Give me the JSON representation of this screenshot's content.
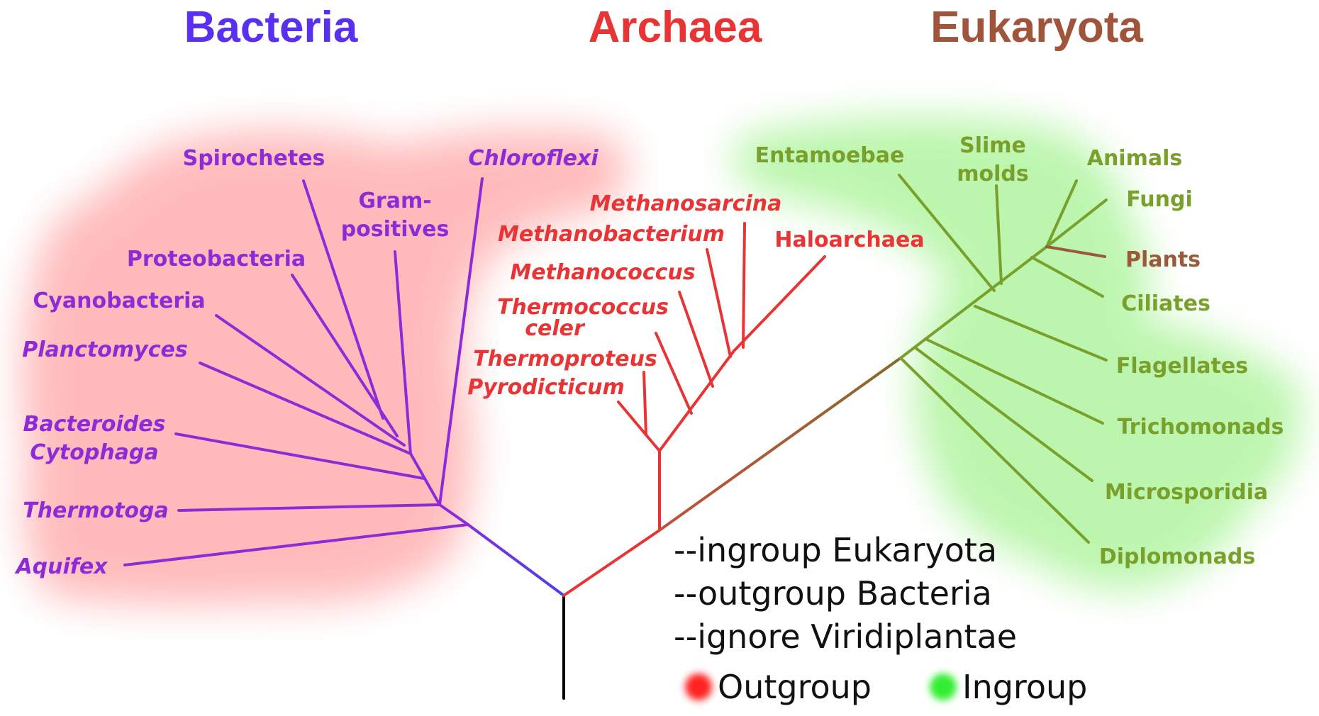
{
  "colors": {
    "bacteria": "#8e2bd6",
    "bacteria_title": "#5a30f0",
    "archaea": "#e83434",
    "eukaryota": "#7aa02c",
    "eukaryota_title": "#a0543c",
    "plants": "#9a5a3a",
    "root": "#000000",
    "outgroup": "#ff2020",
    "ingroup": "#33ee33"
  },
  "domains": {
    "bacteria": "Bacteria",
    "archaea": "Archaea",
    "eukaryota": "Eukaryota"
  },
  "bacteria_taxa": {
    "spirochetes": "Spirochetes",
    "gram_1": "Gram-",
    "gram_2": "positives",
    "chloroflexi": "Chloroflexi",
    "proteobacteria": "Proteobacteria",
    "cyanobacteria": "Cyanobacteria",
    "planctomyces": "Planctomyces",
    "bacteroides": "Bacteroides",
    "cytophaga": "Cytophaga",
    "thermotoga": "Thermotoga",
    "aquifex": "Aquifex"
  },
  "archaea_taxa": {
    "methanosarcina": "Methanosarcina",
    "methanobacterium": "Methanobacterium",
    "haloarchaea": "Haloarchaea",
    "methanococcus": "Methanococcus",
    "thermococcus_1": "Thermococcus",
    "thermococcus_2": "celer",
    "thermoproteus": "Thermoproteus",
    "pyrodicticum": "Pyrodicticum"
  },
  "eukaryota_taxa": {
    "entamoebae": "Entamoebae",
    "slime_1": "Slime",
    "slime_2": "molds",
    "animals": "Animals",
    "fungi": "Fungi",
    "plants": "Plants",
    "ciliates": "Ciliates",
    "flagellates": "Flagellates",
    "trichomonads": "Trichomonads",
    "microsporidia": "Microsporidia",
    "diplomonads": "Diplomonads"
  },
  "options": {
    "ingroup": "--ingroup Eukaryota",
    "outgroup": "--outgroup Bacteria",
    "ignore": "--ignore Viridiplantae"
  },
  "legend": {
    "outgroup": "Outgroup",
    "ingroup": "Ingroup"
  }
}
